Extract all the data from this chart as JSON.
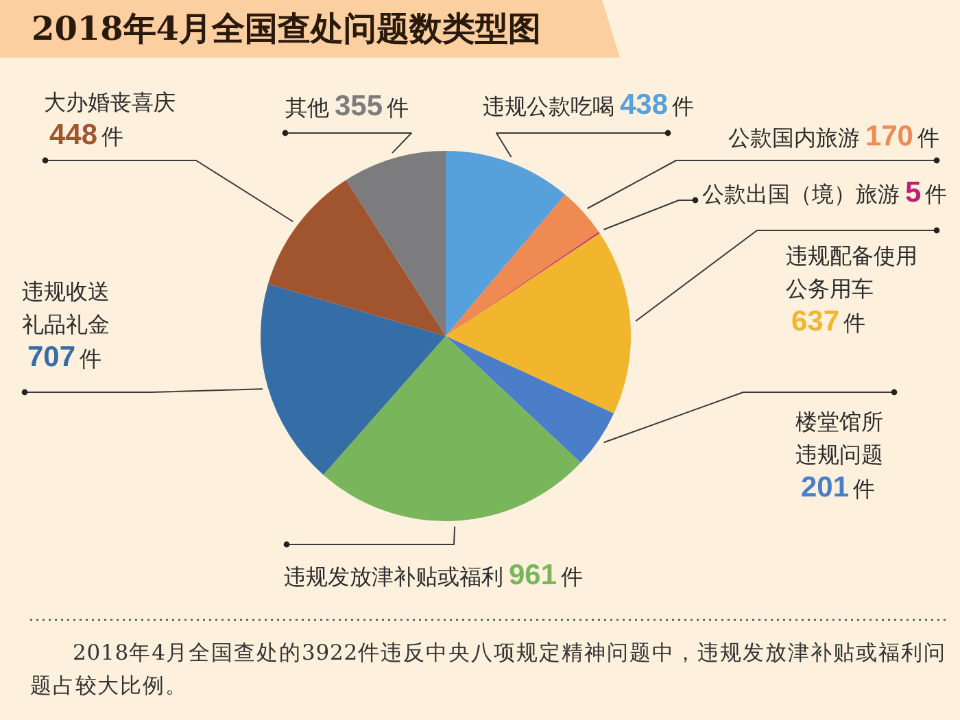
{
  "chart_data": {
    "type": "pie",
    "title": "2018年4月全国查处问题数类型图",
    "categories": [
      "违规公款吃喝",
      "公款国内旅游",
      "公款出国（境）旅游",
      "违规配备使用公务用车",
      "楼堂馆所违规问题",
      "违规发放津补贴或福利",
      "违规收送礼品礼金",
      "大办婚丧喜庆",
      "其他"
    ],
    "values": [
      438,
      170,
      5,
      637,
      201,
      961,
      707,
      448,
      355
    ],
    "colors": [
      "#56a0dc",
      "#ee8a52",
      "#c01f78",
      "#f2b52e",
      "#4a7ec8",
      "#79b55a",
      "#356da6",
      "#a0552f",
      "#7c7c7e"
    ],
    "value_labels": [
      "**438**件",
      "**170**件",
      "**5**件",
      "**637**件",
      "**201**件",
      "**961**件",
      "**707**件",
      "**448**件",
      "**355**件"
    ],
    "annotations": [
      "2018年4月全国查处的3922件违反中央八项规定精神问题中，违规发放津补贴或福利问题占较大比例。"
    ]
  }
}
